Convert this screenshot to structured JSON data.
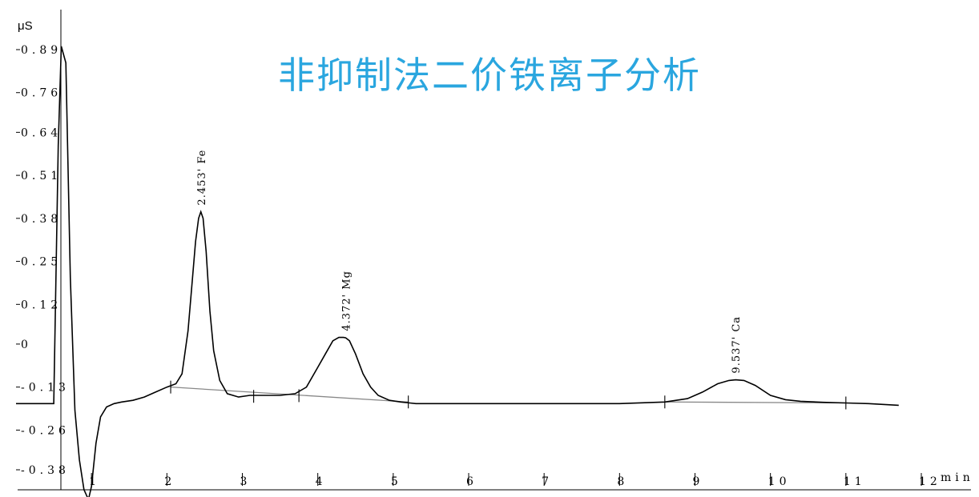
{
  "chart_data": {
    "type": "line",
    "title": "非抑制法二价铁离子分析",
    "ylabel": "μS",
    "xlabel": "min",
    "xlim": [
      0,
      12.3
    ],
    "ylim": [
      -0.46,
      0.93
    ],
    "y_tick_labels": [
      "0.89",
      "0.76",
      "0.64",
      "0.51",
      "0.38",
      "0.25",
      "0.12",
      "0",
      "-0.13",
      "-0.26",
      "-0.38"
    ],
    "y_tick_values": [
      0.89,
      0.76,
      0.64,
      0.51,
      0.38,
      0.25,
      0.12,
      0,
      -0.13,
      -0.26,
      -0.38
    ],
    "x_tick_labels": [
      "1",
      "2",
      "3",
      "4",
      "5",
      "6",
      "7",
      "8",
      "9",
      "10",
      "11",
      "12"
    ],
    "x_tick_values": [
      1,
      2,
      3,
      4,
      5,
      6,
      7,
      8,
      9,
      10,
      11,
      12
    ],
    "series": [
      {
        "x": [
          0,
          0.3,
          0.5,
          0.56,
          0.6,
          0.66,
          0.72,
          0.78,
          0.84,
          0.9,
          0.96,
          1.0,
          1.06,
          1.12,
          1.2,
          1.3,
          1.4,
          1.55,
          1.7,
          1.85,
          2.0,
          2.12,
          2.2,
          2.28,
          2.34,
          2.38,
          2.42,
          2.45,
          2.48,
          2.52,
          2.57,
          2.62,
          2.7,
          2.8,
          2.95,
          3.1,
          3.3,
          3.5,
          3.7,
          3.85,
          4.0,
          4.1,
          4.2,
          4.28,
          4.34,
          4.37,
          4.42,
          4.5,
          4.6,
          4.7,
          4.8,
          4.95,
          5.1,
          5.3,
          5.6,
          6.0,
          7.0,
          8.0,
          8.6,
          8.9,
          9.1,
          9.3,
          9.45,
          9.54,
          9.65,
          9.8,
          10.0,
          10.2,
          10.4,
          10.7,
          11.0,
          11.3,
          11.7
        ],
        "y": [
          -0.18,
          -0.18,
          -0.18,
          0.6,
          0.9,
          0.85,
          0.2,
          -0.2,
          -0.35,
          -0.44,
          -0.47,
          -0.43,
          -0.3,
          -0.22,
          -0.19,
          -0.18,
          -0.175,
          -0.17,
          -0.16,
          -0.145,
          -0.13,
          -0.12,
          -0.09,
          0.04,
          0.2,
          0.31,
          0.38,
          0.4,
          0.38,
          0.28,
          0.1,
          -0.02,
          -0.11,
          -0.15,
          -0.16,
          -0.155,
          -0.155,
          -0.155,
          -0.15,
          -0.13,
          -0.07,
          -0.03,
          0.01,
          0.02,
          0.02,
          0.019,
          0.01,
          -0.03,
          -0.09,
          -0.13,
          -0.155,
          -0.17,
          -0.175,
          -0.18,
          -0.18,
          -0.18,
          -0.18,
          -0.18,
          -0.175,
          -0.165,
          -0.145,
          -0.12,
          -0.11,
          -0.108,
          -0.11,
          -0.125,
          -0.155,
          -0.168,
          -0.173,
          -0.176,
          -0.178,
          -0.18,
          -0.185
        ]
      }
    ],
    "baselines": [
      {
        "x": [
          2.05,
          5.2
        ],
        "y": [
          -0.13,
          -0.175
        ]
      },
      {
        "x": [
          8.6,
          11.0
        ],
        "y": [
          -0.175,
          -0.178
        ]
      }
    ],
    "integration_marks": [
      {
        "x": 2.05,
        "y": -0.13
      },
      {
        "x": 3.15,
        "y": -0.158
      },
      {
        "x": 3.75,
        "y": -0.156
      },
      {
        "x": 5.2,
        "y": -0.175
      },
      {
        "x": 8.6,
        "y": -0.175
      },
      {
        "x": 11.0,
        "y": -0.178
      }
    ],
    "peak_labels": [
      {
        "label": "2.453' Fe",
        "x": 2.453,
        "y": 0.4
      },
      {
        "label": "4.372' Mg",
        "x": 4.372,
        "y": 0.02
      },
      {
        "label": "9.537' Ca",
        "x": 9.537,
        "y": -0.108
      }
    ],
    "grid": false
  }
}
